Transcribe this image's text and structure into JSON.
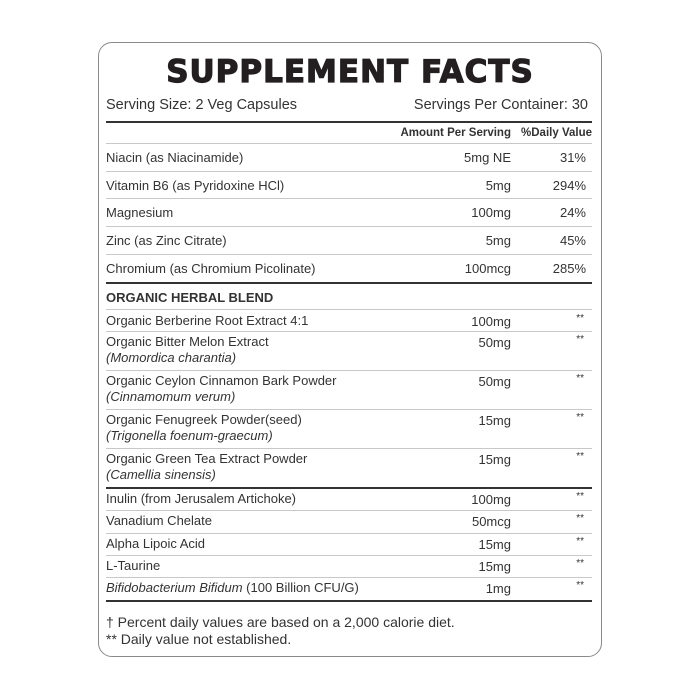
{
  "title": "SUPPLEMENT FACTS",
  "serving_size": "Serving Size: 2 Veg Capsules",
  "servings_per_container": "Servings Per Container: 30",
  "headers": {
    "amount": "Amount Per Serving",
    "dv": "%Daily Value"
  },
  "nutrients": [
    {
      "name": "Niacin (as Niacinamide)",
      "amount": "5mg NE",
      "dv": "31%"
    },
    {
      "name": "Vitamin B6 (as Pyridoxine HCl)",
      "amount": "5mg",
      "dv": "294%"
    },
    {
      "name": "Magnesium",
      "amount": "100mg",
      "dv": "24%"
    },
    {
      "name": "Zinc (as Zinc Citrate)",
      "amount": "5mg",
      "dv": "45%"
    },
    {
      "name": "Chromium (as Chromium Picolinate)",
      "amount": "100mcg",
      "dv": "285%"
    }
  ],
  "blend_title": "ORGANIC HERBAL BLEND",
  "blend": [
    {
      "name": "Organic Berberine Root Extract 4:1",
      "latin": "",
      "amount": "100mg",
      "dv": "**"
    },
    {
      "name": "Organic Bitter Melon Extract",
      "latin": "(Momordica charantia)",
      "amount": "50mg",
      "dv": "**"
    },
    {
      "name": "Organic Ceylon Cinnamon Bark Powder",
      "latin": "(Cinnamomum verum)",
      "amount": "50mg",
      "dv": "**"
    },
    {
      "name": "Organic Fenugreek Powder(seed)",
      "latin": "(Trigonella foenum-graecum)",
      "amount": "15mg",
      "dv": "**"
    },
    {
      "name": "Organic Green Tea Extract Powder",
      "latin": "(Camellia sinensis)",
      "amount": "15mg",
      "dv": "**"
    }
  ],
  "others": [
    {
      "name": "Inulin (from Jerusalem Artichoke)",
      "italic": "",
      "amount": "100mg",
      "dv": "**"
    },
    {
      "name": "Vanadium Chelate",
      "italic": "",
      "amount": "50mcg",
      "dv": "**"
    },
    {
      "name": "Alpha Lipoic Acid",
      "italic": "",
      "amount": "15mg",
      "dv": "**"
    },
    {
      "name": "L-Taurine",
      "italic": "",
      "amount": "15mg",
      "dv": "**"
    },
    {
      "name": " (100 Billion CFU/G)",
      "italic": "Bifidobacterium Bifidum",
      "amount": "1mg",
      "dv": "**"
    }
  ],
  "footnotes": [
    "† Percent daily values are based on a 2,000 calorie diet.",
    "** Daily value not established."
  ]
}
